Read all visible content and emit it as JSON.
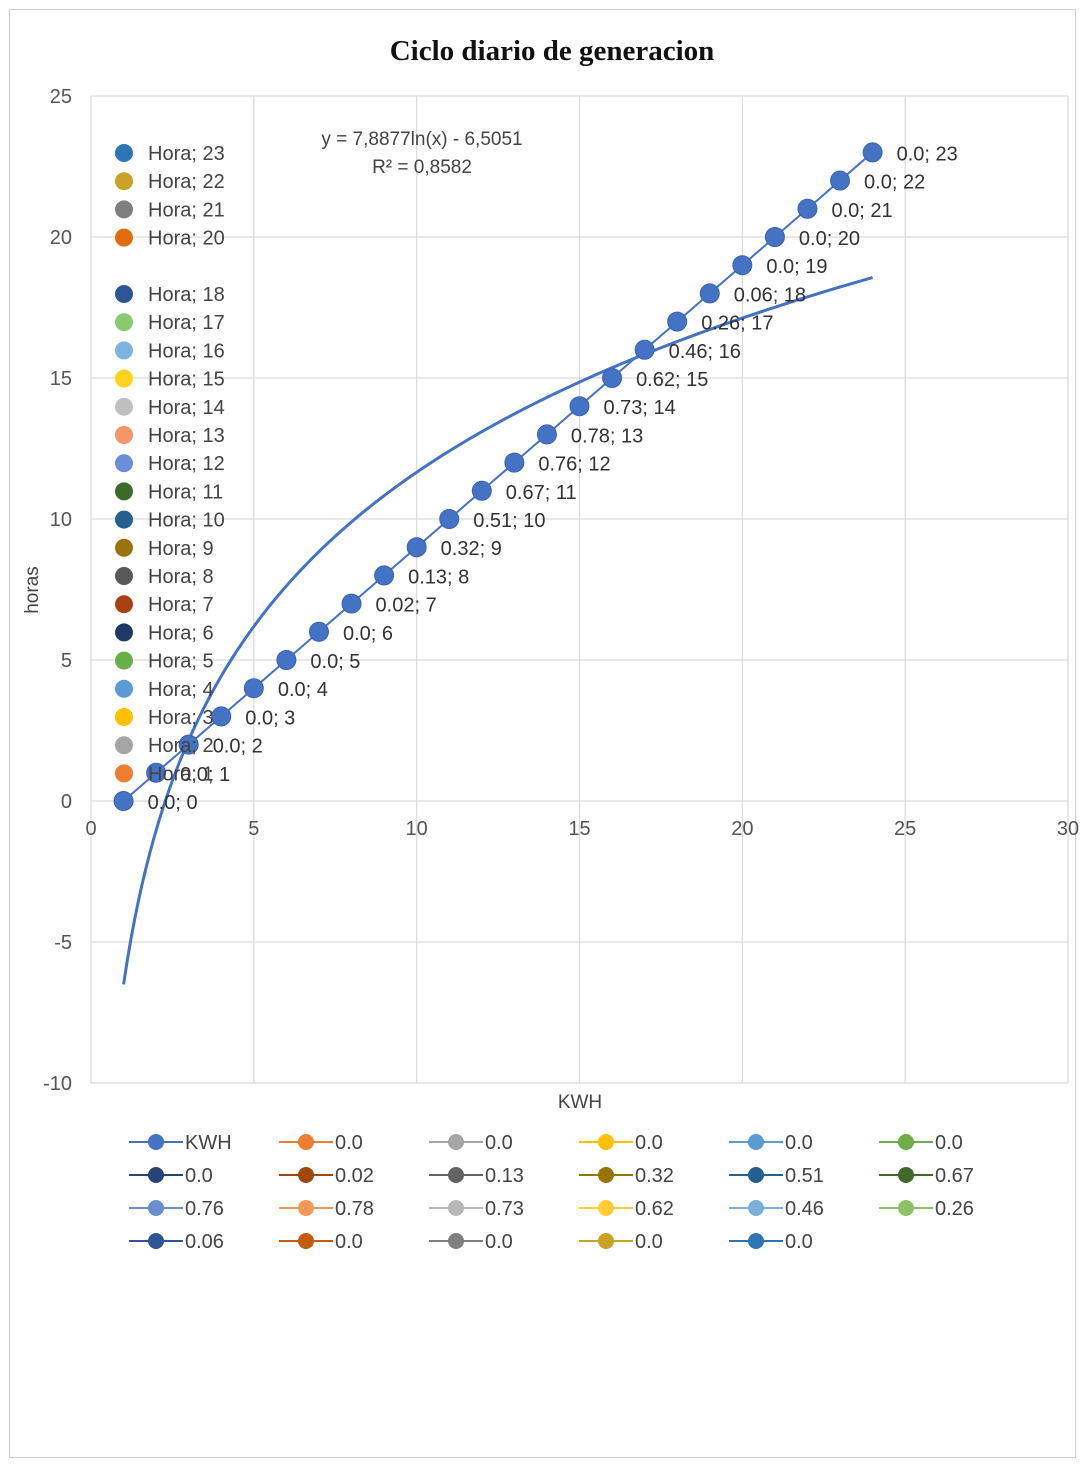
{
  "chart_data": {
    "type": "scatter",
    "title": "Ciclo diario de generacion",
    "xlabel": "KWH",
    "ylabel": "horas",
    "xlim": [
      0,
      30
    ],
    "ylim": [
      -10,
      25
    ],
    "x_ticks": [
      "0",
      "5",
      "10",
      "15",
      "20",
      "25",
      "30"
    ],
    "y_ticks": [
      "-10",
      "-5",
      "0",
      "5",
      "10",
      "15",
      "20",
      "25"
    ],
    "grid": true,
    "marker_color": "#4472C4",
    "series": [
      {
        "name": "KWH",
        "color": "#4472C4",
        "points": [
          {
            "x": 1,
            "y": 0,
            "label": "0.0; 0"
          },
          {
            "x": 2,
            "y": 1,
            "label": "0.0; 1"
          },
          {
            "x": 3,
            "y": 2,
            "label": "0.0; 2"
          },
          {
            "x": 4,
            "y": 3,
            "label": "0.0; 3"
          },
          {
            "x": 5,
            "y": 4,
            "label": "0.0; 4"
          },
          {
            "x": 6,
            "y": 5,
            "label": "0.0; 5"
          },
          {
            "x": 7,
            "y": 6,
            "label": "0.0; 6"
          },
          {
            "x": 8,
            "y": 7,
            "label": "0.02; 7"
          },
          {
            "x": 9,
            "y": 8,
            "label": "0.13; 8"
          },
          {
            "x": 10,
            "y": 9,
            "label": "0.32; 9"
          },
          {
            "x": 11,
            "y": 10,
            "label": "0.51; 10"
          },
          {
            "x": 12,
            "y": 11,
            "label": "0.67; 11"
          },
          {
            "x": 13,
            "y": 12,
            "label": "0.76; 12"
          },
          {
            "x": 14,
            "y": 13,
            "label": "0.78; 13"
          },
          {
            "x": 15,
            "y": 14,
            "label": "0.73; 14"
          },
          {
            "x": 16,
            "y": 15,
            "label": "0.62; 15"
          },
          {
            "x": 17,
            "y": 16,
            "label": "0.46; 16"
          },
          {
            "x": 18,
            "y": 17,
            "label": "0.26; 17"
          },
          {
            "x": 19,
            "y": 18,
            "label": "0.06; 18"
          },
          {
            "x": 20,
            "y": 19,
            "label": "0.0; 19"
          },
          {
            "x": 21,
            "y": 20,
            "label": "0.0; 20"
          },
          {
            "x": 22,
            "y": 21,
            "label": "0.0; 21"
          },
          {
            "x": 23,
            "y": 22,
            "label": "0.0; 22"
          },
          {
            "x": 24,
            "y": 23,
            "label": "0.0; 23"
          }
        ]
      }
    ],
    "trendline": {
      "type": "logarithmic",
      "a": 7.8877,
      "b": -6.5051,
      "x_range": [
        1,
        24
      ],
      "equation": "y = 7,8877ln(x) - 6,5051",
      "r2": "R² = 0,8582",
      "color": "#4472C4"
    },
    "inner_legend": [
      {
        "label": "Hora; 23",
        "color": "#2E75B6"
      },
      {
        "label": "Hora; 22",
        "color": "#C9A227"
      },
      {
        "label": "Hora; 21",
        "color": "#7F7F7F"
      },
      {
        "label": "Hora; 20",
        "color": "#E36C0A"
      },
      {
        "label": "Hora; 18",
        "color": "#2F5597"
      },
      {
        "label": "Hora; 17",
        "color": "#8BC970"
      },
      {
        "label": "Hora; 16",
        "color": "#7EB4E3"
      },
      {
        "label": "Hora; 15",
        "color": "#FFD21F"
      },
      {
        "label": "Hora; 14",
        "color": "#BFBFBF"
      },
      {
        "label": "Hora; 13",
        "color": "#F4956A"
      },
      {
        "label": "Hora; 12",
        "color": "#6A8FD8"
      },
      {
        "label": "Hora; 11",
        "color": "#3B6B2A"
      },
      {
        "label": "Hora; 10",
        "color": "#255E91"
      },
      {
        "label": "Hora; 9",
        "color": "#98740C"
      },
      {
        "label": "Hora; 8",
        "color": "#595959"
      },
      {
        "label": "Hora; 7",
        "color": "#A5420F"
      },
      {
        "label": "Hora; 6",
        "color": "#1F3864"
      },
      {
        "label": "Hora; 5",
        "color": "#6AAF45"
      },
      {
        "label": "Hora; 4",
        "color": "#5A9BD5"
      },
      {
        "label": "Hora; 3",
        "color": "#FFC000"
      },
      {
        "label": "Hora; 2",
        "color": "#A5A5A5"
      },
      {
        "label": "Hora; 1",
        "color": "#ED7D31"
      }
    ],
    "bottom_legend": [
      {
        "label": "KWH",
        "color": "#4472C4"
      },
      {
        "label": "0.0",
        "color": "#ED7D31"
      },
      {
        "label": "0.0",
        "color": "#A5A5A5"
      },
      {
        "label": "0.0",
        "color": "#FFC000"
      },
      {
        "label": "0.0",
        "color": "#5B9BD5"
      },
      {
        "label": "0.0",
        "color": "#70AD47"
      },
      {
        "label": "0.0",
        "color": "#264478"
      },
      {
        "label": "0.02",
        "color": "#9E480E"
      },
      {
        "label": "0.13",
        "color": "#636363"
      },
      {
        "label": "0.32",
        "color": "#997300"
      },
      {
        "label": "0.51",
        "color": "#255E91"
      },
      {
        "label": "0.67",
        "color": "#43682B"
      },
      {
        "label": "0.76",
        "color": "#698ED0"
      },
      {
        "label": "0.78",
        "color": "#F1975A"
      },
      {
        "label": "0.73",
        "color": "#B7B7B7"
      },
      {
        "label": "0.62",
        "color": "#FFCD33"
      },
      {
        "label": "0.46",
        "color": "#7CAFDD"
      },
      {
        "label": "0.26",
        "color": "#8CC168"
      },
      {
        "label": "0.06",
        "color": "#2F5597"
      },
      {
        "label": "0.0",
        "color": "#C55A11"
      },
      {
        "label": "0.0",
        "color": "#7F7F7F"
      },
      {
        "label": "0.0",
        "color": "#C9A227"
      },
      {
        "label": "0.0",
        "color": "#2E75B6"
      }
    ]
  }
}
